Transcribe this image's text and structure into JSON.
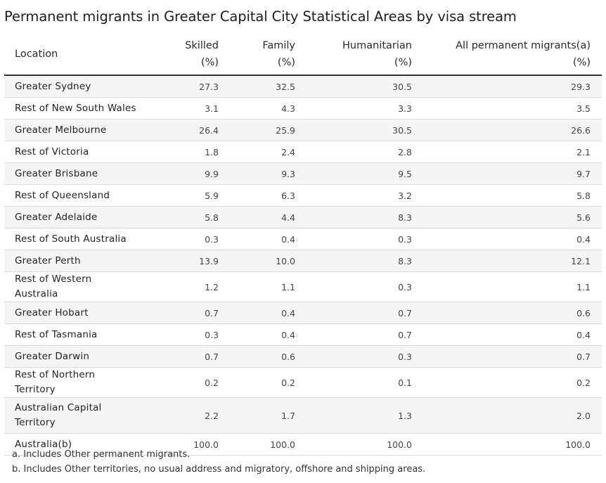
{
  "title": "Permanent migrants in Greater Capital City Statistical Areas by visa stream",
  "table": {
    "headers": {
      "location": "Location",
      "skilled": [
        "Skilled",
        "(%)"
      ],
      "family": [
        "Family",
        "(%)"
      ],
      "humanitarian": [
        "Humanitarian",
        "(%)"
      ],
      "all": [
        "All permanent migrants(a)",
        "(%)"
      ]
    },
    "rows": [
      {
        "location": "Greater Sydney",
        "skilled": "27.3",
        "family": "32.5",
        "humanitarian": "30.5",
        "all": "29.3"
      },
      {
        "location": "Rest of New South Wales",
        "skilled": "3.1",
        "family": "4.3",
        "humanitarian": "3.3",
        "all": "3.5"
      },
      {
        "location": "Greater Melbourne",
        "skilled": "26.4",
        "family": "25.9",
        "humanitarian": "30.5",
        "all": "26.6"
      },
      {
        "location": "Rest of Victoria",
        "skilled": "1.8",
        "family": "2.4",
        "humanitarian": "2.8",
        "all": "2.1"
      },
      {
        "location": "Greater Brisbane",
        "skilled": "9.9",
        "family": "9.3",
        "humanitarian": "9.5",
        "all": "9.7"
      },
      {
        "location": "Rest of Queensland",
        "skilled": "5.9",
        "family": "6.3",
        "humanitarian": "3.2",
        "all": "5.8"
      },
      {
        "location": "Greater Adelaide",
        "skilled": "5.8",
        "family": "4.4",
        "humanitarian": "8.3",
        "all": "5.6"
      },
      {
        "location": "Rest of South Australia",
        "skilled": "0.3",
        "family": "0.4",
        "humanitarian": "0.3",
        "all": "0.4"
      },
      {
        "location": "Greater Perth",
        "skilled": "13.9",
        "family": "10.0",
        "humanitarian": "8.3",
        "all": "12.1"
      },
      {
        "location": "Rest of Western Australia",
        "skilled": "1.2",
        "family": "1.1",
        "humanitarian": "0.3",
        "all": "1.1"
      },
      {
        "location": "Greater Hobart",
        "skilled": "0.7",
        "family": "0.4",
        "humanitarian": "0.7",
        "all": "0.6"
      },
      {
        "location": "Rest of Tasmania",
        "skilled": "0.3",
        "family": "0.4",
        "humanitarian": "0.7",
        "all": "0.4"
      },
      {
        "location": "Greater Darwin",
        "skilled": "0.7",
        "family": "0.6",
        "humanitarian": "0.3",
        "all": "0.7"
      },
      {
        "location": "Rest of Northern Territory",
        "skilled": "0.2",
        "family": "0.2",
        "humanitarian": "0.1",
        "all": "0.2"
      },
      {
        "location": "Australian Capital Territory",
        "skilled": "2.2",
        "family": "1.7",
        "humanitarian": "1.3",
        "all": "2.0"
      },
      {
        "location": "Australia(b)",
        "skilled": "100.0",
        "family": "100.0",
        "humanitarian": "100.0",
        "all": "100.0"
      }
    ]
  },
  "footnotes": [
    "a. Includes Other permanent migrants.",
    "b. Includes Other territories, no usual address and migratory, offshore and shipping areas."
  ]
}
